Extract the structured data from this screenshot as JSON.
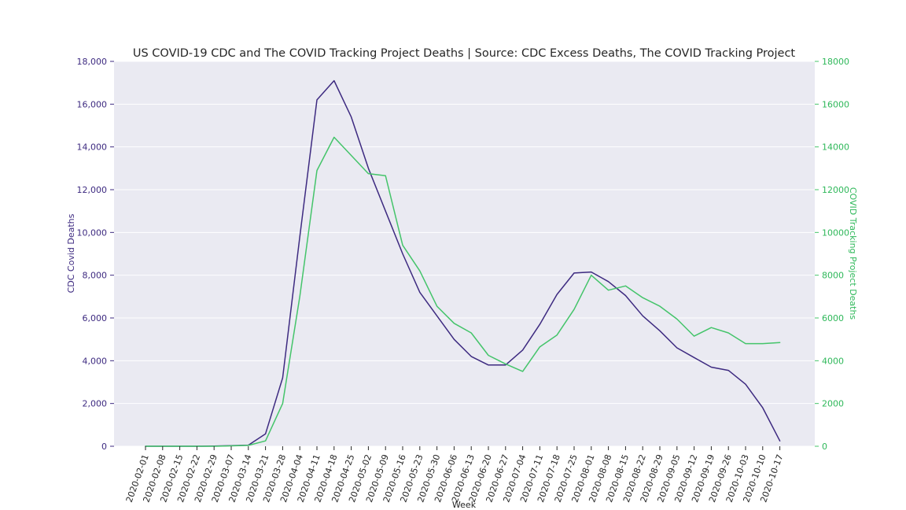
{
  "chart_data": {
    "type": "line",
    "title": "US COVID-19 CDC and The COVID Tracking Project Deaths | Source: CDC Excess Deaths, The COVID Tracking Project",
    "xlabel": "Week",
    "ylabel_left": "CDC Covid Deaths",
    "ylabel_right": "COVID Tracking Project Deaths",
    "ylim_left": [
      0,
      18000
    ],
    "ylim_right": [
      0,
      18000
    ],
    "yticks_left": [
      "0",
      "2,000",
      "4,000",
      "6,000",
      "8,000",
      "10,000",
      "12,000",
      "14,000",
      "16,000",
      "18,000"
    ],
    "yticks_right": [
      "0",
      "2000",
      "4000",
      "6000",
      "8000",
      "10000",
      "12000",
      "14000",
      "16000",
      "18000"
    ],
    "grid": true,
    "categories": [
      "2020-02-01",
      "2020-02-08",
      "2020-02-15",
      "2020-02-22",
      "2020-02-29",
      "2020-03-07",
      "2020-03-14",
      "2020-03-21",
      "2020-03-28",
      "2020-04-04",
      "2020-04-11",
      "2020-04-18",
      "2020-04-25",
      "2020-05-02",
      "2020-05-09",
      "2020-05-16",
      "2020-05-23",
      "2020-05-30",
      "2020-06-06",
      "2020-06-13",
      "2020-06-20",
      "2020-06-27",
      "2020-07-04",
      "2020-07-11",
      "2020-07-18",
      "2020-07-25",
      "2020-08-01",
      "2020-08-08",
      "2020-08-15",
      "2020-08-22",
      "2020-08-29",
      "2020-09-05",
      "2020-09-12",
      "2020-09-19",
      "2020-09-26",
      "2020-10-03",
      "2020-10-10",
      "2020-10-17"
    ],
    "series": [
      {
        "name": "CDC Covid Deaths",
        "axis": "left",
        "color": "#3d2a80",
        "values": [
          0,
          0,
          0,
          0,
          10,
          30,
          50,
          580,
          3200,
          9800,
          16200,
          17100,
          15400,
          13000,
          11000,
          9000,
          7200,
          6100,
          5000,
          4200,
          3800,
          3800,
          4500,
          5700,
          7100,
          8100,
          8150,
          7700,
          7050,
          6100,
          5400,
          4600,
          4150,
          3700,
          3550,
          2900,
          1800,
          250
        ]
      },
      {
        "name": "COVID Tracking Project Deaths",
        "axis": "right",
        "color": "#44c46a",
        "values": [
          0,
          0,
          0,
          0,
          0,
          20,
          40,
          250,
          2000,
          7000,
          12900,
          14450,
          13600,
          12750,
          12650,
          9400,
          8200,
          6550,
          5750,
          5300,
          4250,
          3850,
          3500,
          4650,
          5200,
          6400,
          8000,
          7300,
          7500,
          6950,
          6550,
          5950,
          5150,
          5550,
          5300,
          4800,
          4800,
          4850
        ]
      }
    ]
  }
}
